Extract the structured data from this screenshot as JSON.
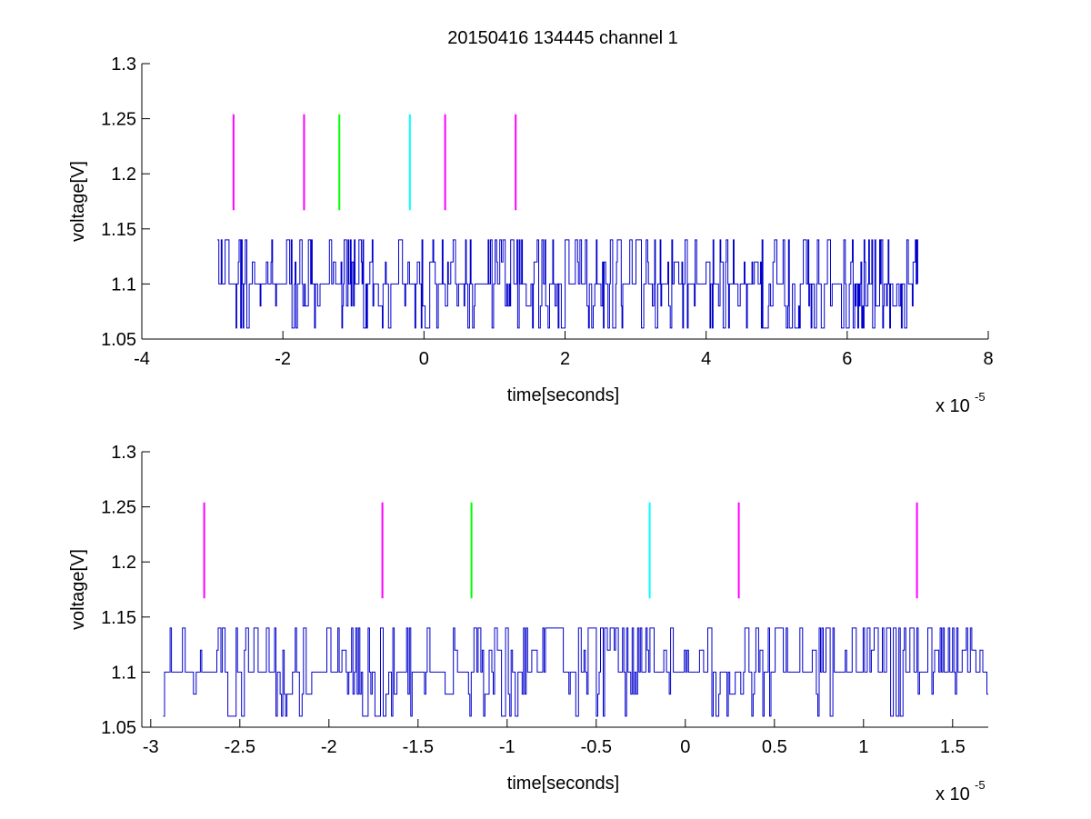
{
  "figure_title": "20150416 134445 channel 1",
  "chart_data": [
    {
      "type": "line",
      "title": "20150416 134445 channel 1",
      "xlabel": "time[seconds]",
      "ylabel": "voltage[V]",
      "x_exponent_label": "x 10",
      "x_exponent_power": "-5",
      "xlim": [
        -4,
        8
      ],
      "ylim": [
        1.05,
        1.3
      ],
      "x_ticks": [
        -4,
        -2,
        0,
        2,
        4,
        6,
        8
      ],
      "x_tick_labels": [
        "-4",
        "-2",
        "0",
        "2",
        "4",
        "6",
        "8"
      ],
      "y_ticks": [
        1.05,
        1.1,
        1.15,
        1.2,
        1.25,
        1.3
      ],
      "y_tick_labels": [
        "1.05",
        "1.1",
        "1.15",
        "1.2",
        "1.25",
        "1.3"
      ],
      "grid": false,
      "signal": {
        "color": "#0000cc",
        "x_start": -2.93,
        "x_end": 7.0,
        "levels": [
          1.06,
          1.08,
          1.1,
          1.12,
          1.14
        ],
        "baseline": 1.1
      },
      "markers": [
        {
          "x": -2.7,
          "y_range": [
            1.167,
            1.254
          ],
          "color": "#ff00ff"
        },
        {
          "x": -1.7,
          "y_range": [
            1.167,
            1.254
          ],
          "color": "#ff00ff"
        },
        {
          "x": -1.2,
          "y_range": [
            1.167,
            1.254
          ],
          "color": "#00ff00"
        },
        {
          "x": -0.2,
          "y_range": [
            1.167,
            1.254
          ],
          "color": "#00ffff"
        },
        {
          "x": 0.3,
          "y_range": [
            1.167,
            1.254
          ],
          "color": "#ff00ff"
        },
        {
          "x": 1.3,
          "y_range": [
            1.167,
            1.254
          ],
          "color": "#ff00ff"
        }
      ]
    },
    {
      "type": "line",
      "title": "",
      "xlabel": "time[seconds]",
      "ylabel": "voltage[V]",
      "x_exponent_label": "x 10",
      "x_exponent_power": "-5",
      "xlim": [
        -3.05,
        1.7
      ],
      "ylim": [
        1.05,
        1.3
      ],
      "x_ticks": [
        -3,
        -2.5,
        -2,
        -1.5,
        -1,
        -0.5,
        0,
        0.5,
        1,
        1.5
      ],
      "x_tick_labels": [
        "-3",
        "-2.5",
        "-2",
        "-1.5",
        "-1",
        "-0.5",
        "0",
        "0.5",
        "1",
        "1.5"
      ],
      "y_ticks": [
        1.05,
        1.1,
        1.15,
        1.2,
        1.25,
        1.3
      ],
      "y_tick_labels": [
        "1.05",
        "1.1",
        "1.15",
        "1.2",
        "1.25",
        "1.3"
      ],
      "grid": false,
      "signal": {
        "color": "#0000cc",
        "x_start": -2.93,
        "x_end": 1.7,
        "levels": [
          1.06,
          1.08,
          1.1,
          1.12,
          1.14
        ],
        "baseline": 1.1
      },
      "markers": [
        {
          "x": -2.7,
          "y_range": [
            1.167,
            1.254
          ],
          "color": "#ff00ff"
        },
        {
          "x": -1.7,
          "y_range": [
            1.167,
            1.254
          ],
          "color": "#ff00ff"
        },
        {
          "x": -1.2,
          "y_range": [
            1.167,
            1.254
          ],
          "color": "#00ff00"
        },
        {
          "x": -0.2,
          "y_range": [
            1.167,
            1.254
          ],
          "color": "#00ffff"
        },
        {
          "x": 0.3,
          "y_range": [
            1.167,
            1.254
          ],
          "color": "#ff00ff"
        },
        {
          "x": 1.3,
          "y_range": [
            1.167,
            1.254
          ],
          "color": "#ff00ff"
        }
      ]
    }
  ]
}
